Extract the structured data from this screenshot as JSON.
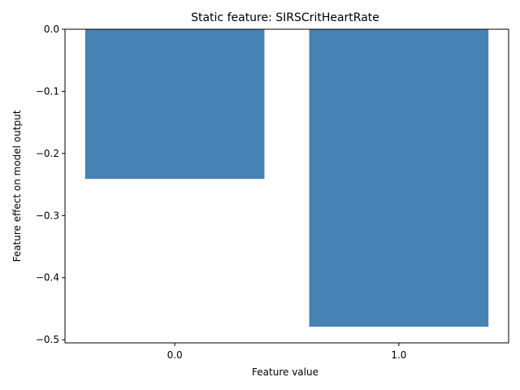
{
  "chart_data": {
    "type": "bar",
    "title": "Static feature: SIRSCritHeartRate",
    "xlabel": "Feature value",
    "ylabel": "Feature effect on model output",
    "categories": [
      "0.0",
      "1.0"
    ],
    "values": [
      -0.241,
      -0.479
    ],
    "ylim": [
      -0.505,
      0.0
    ],
    "yticks": [
      0.0,
      -0.1,
      -0.2,
      -0.3,
      -0.4,
      -0.5
    ],
    "ytick_labels": [
      "0.0",
      "−0.1",
      "−0.2",
      "−0.3",
      "−0.4",
      "−0.5"
    ],
    "bar_color": "#4682b4",
    "grid": false,
    "legend": "none"
  }
}
